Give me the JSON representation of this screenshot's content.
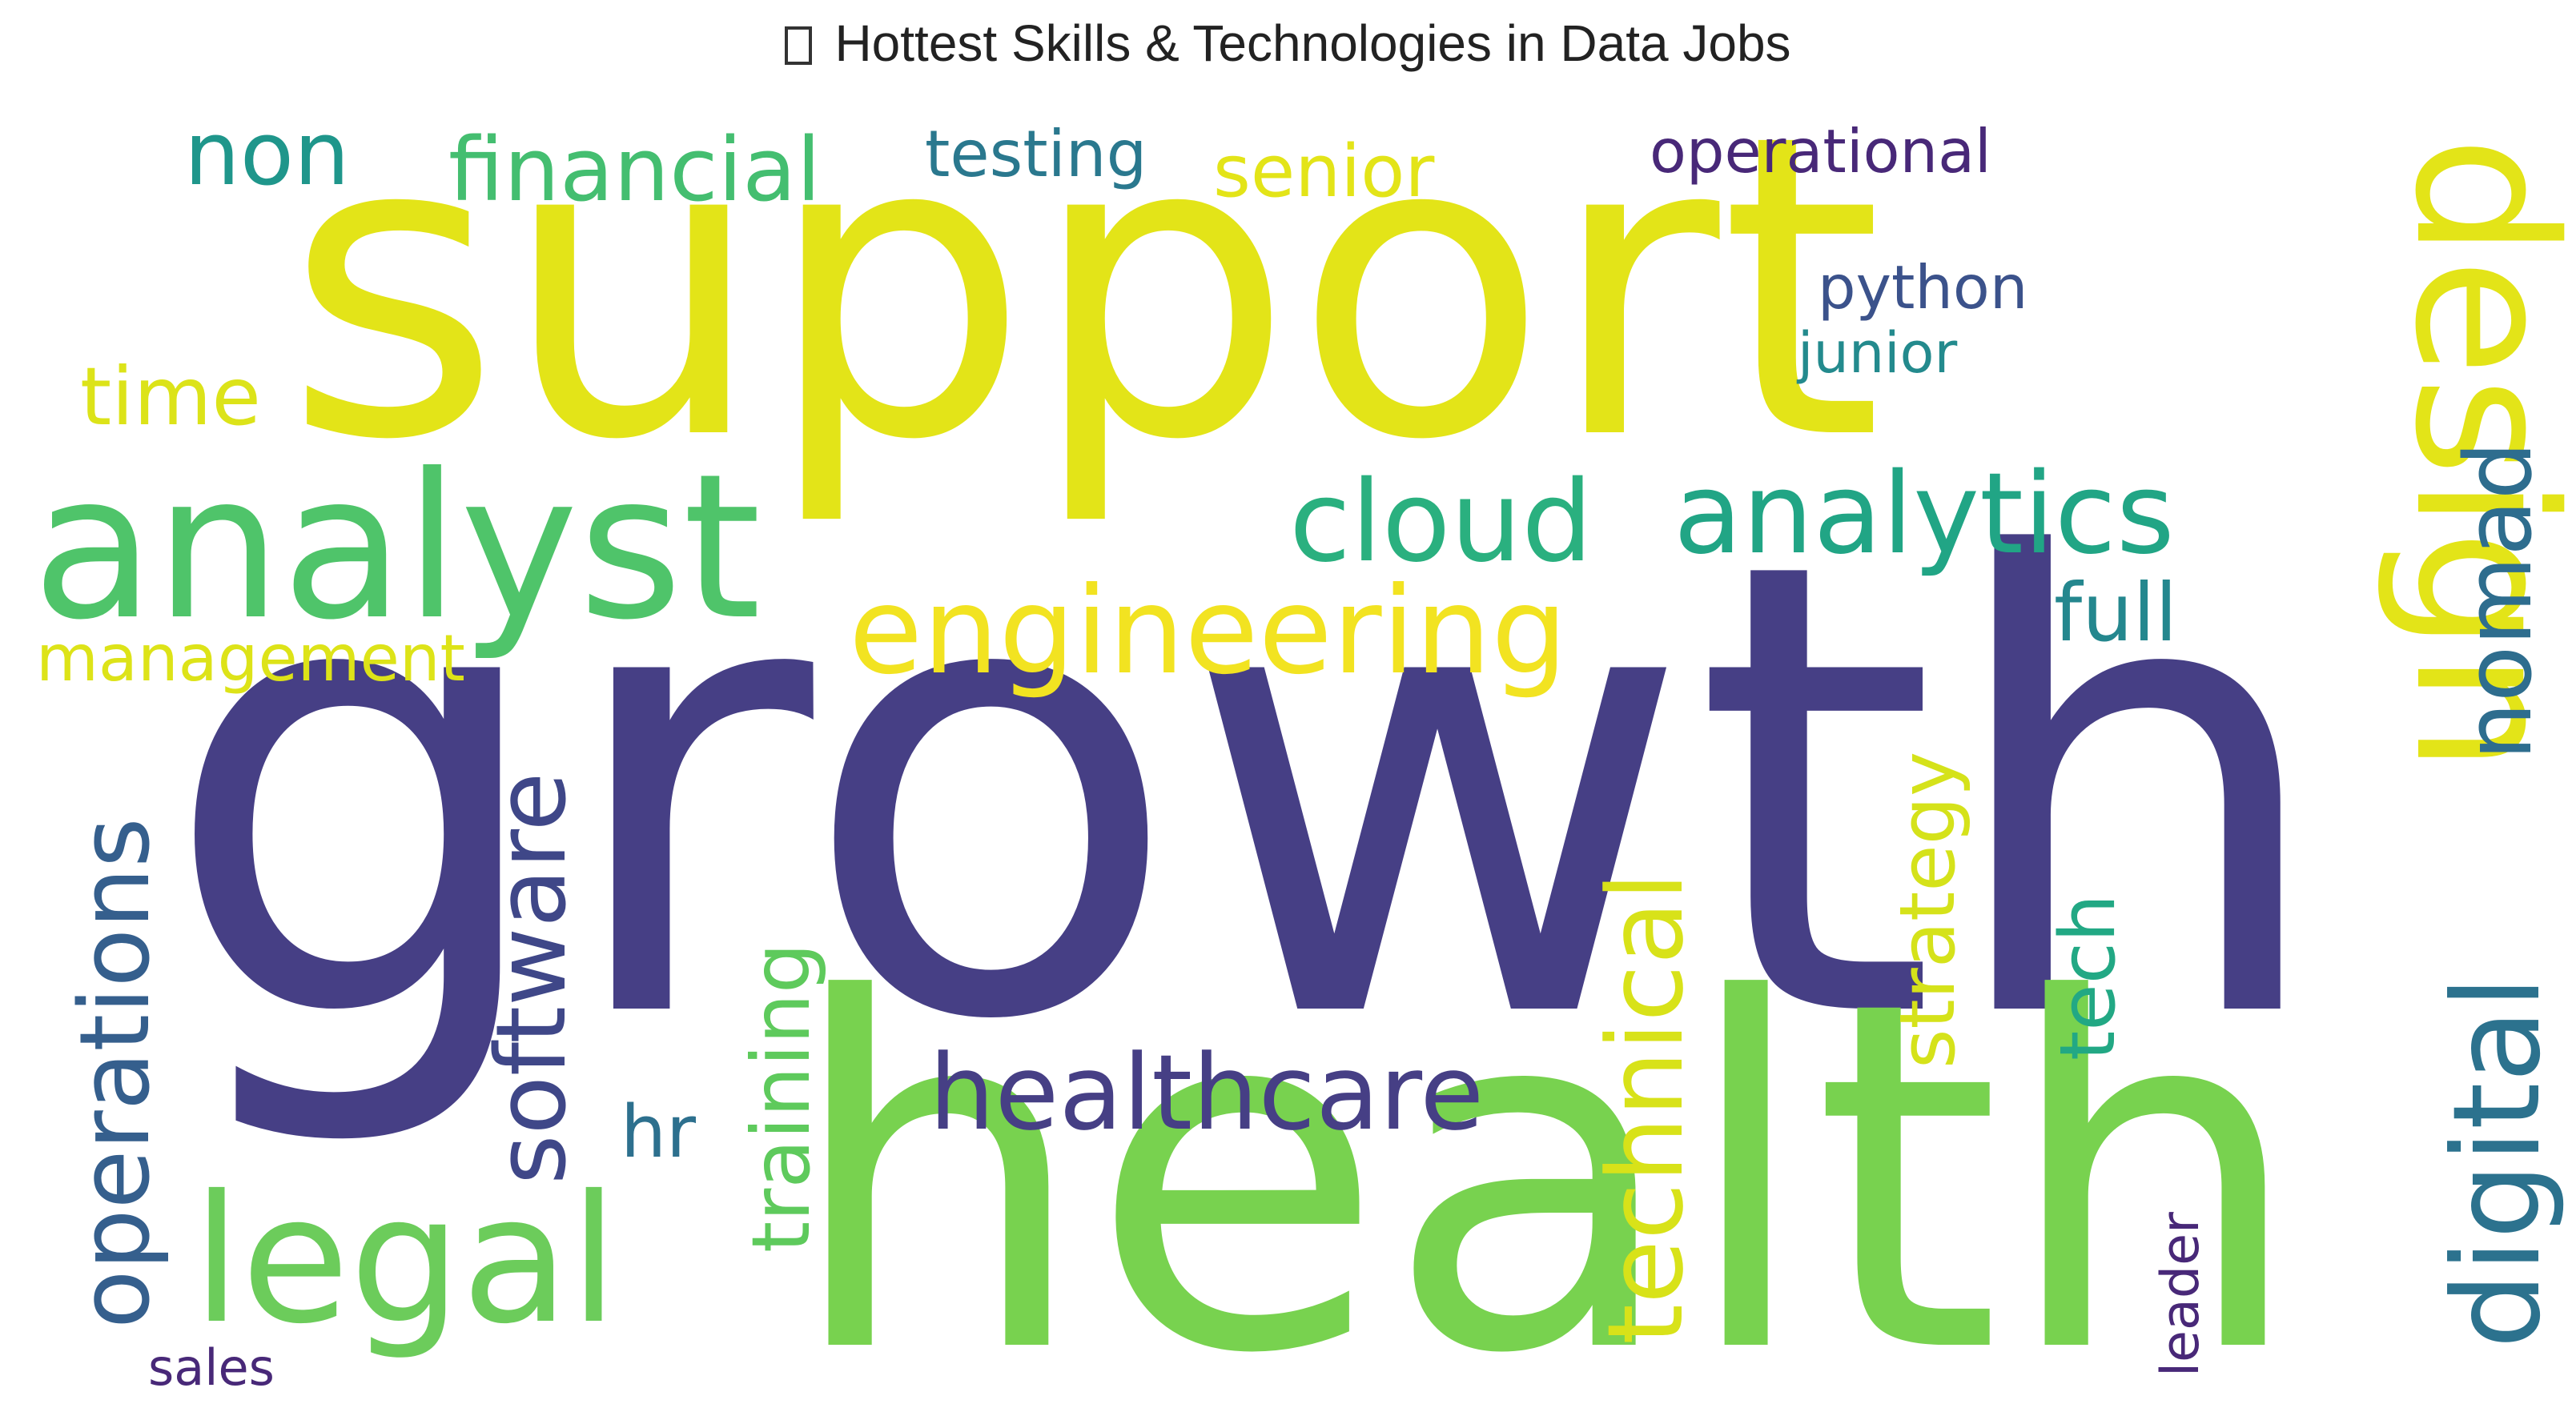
{
  "chart_data": {
    "type": "wordcloud",
    "title": "Hottest Skills & Technologies in Data Jobs",
    "title_icon": "emoji-glyph-placeholder",
    "colormap": "viridis",
    "words": [
      {
        "text": "growth",
        "weight": 100,
        "color": "#463F85",
        "rotate": 0
      },
      {
        "text": "health",
        "weight": 78,
        "color": "#78D24F",
        "rotate": 0
      },
      {
        "text": "support",
        "weight": 73,
        "color": "#E3E418",
        "rotate": 0
      },
      {
        "text": "analyst",
        "weight": 36,
        "color": "#4FC46A",
        "rotate": 0
      },
      {
        "text": "design",
        "weight": 30,
        "color": "#E3E418",
        "rotate": 90
      },
      {
        "text": "legal",
        "weight": 30,
        "color": "#6CCC5B",
        "rotate": 0
      },
      {
        "text": "engineering",
        "weight": 20,
        "color": "#F2E321",
        "rotate": 0
      },
      {
        "text": "digital",
        "weight": 19,
        "color": "#2C728E",
        "rotate": -90
      },
      {
        "text": "analytics",
        "weight": 16,
        "color": "#21A585",
        "rotate": 0
      },
      {
        "text": "cloud",
        "weight": 16,
        "color": "#2AB07F",
        "rotate": 0
      },
      {
        "text": "healthcare",
        "weight": 16,
        "color": "#463F85",
        "rotate": 0
      },
      {
        "text": "technical",
        "weight": 16,
        "color": "#D8E219",
        "rotate": -90
      },
      {
        "text": "operations",
        "weight": 15,
        "color": "#355F8D",
        "rotate": -90
      },
      {
        "text": "software",
        "weight": 15,
        "color": "#3F4788",
        "rotate": -90
      },
      {
        "text": "nomad",
        "weight": 14,
        "color": "#2E6D8E",
        "rotate": -90
      },
      {
        "text": "financial",
        "weight": 13,
        "color": "#44BE70",
        "rotate": 0
      },
      {
        "text": "training",
        "weight": 12,
        "color": "#5ECA5C",
        "rotate": -90
      },
      {
        "text": "non",
        "weight": 12,
        "color": "#1F968B",
        "rotate": 0
      },
      {
        "text": "full",
        "weight": 12,
        "color": "#24878E",
        "rotate": 0
      },
      {
        "text": "strategy",
        "weight": 11,
        "color": "#D5E21A",
        "rotate": -90
      },
      {
        "text": "tech",
        "weight": 11,
        "color": "#22A884",
        "rotate": -90
      },
      {
        "text": "time",
        "weight": 11,
        "color": "#DCE319",
        "rotate": 0
      },
      {
        "text": "senior",
        "weight": 10,
        "color": "#E3E418",
        "rotate": 0
      },
      {
        "text": "hr",
        "weight": 10,
        "color": "#2D708E",
        "rotate": 0
      },
      {
        "text": "management",
        "weight": 9,
        "color": "#DDE318",
        "rotate": 0
      },
      {
        "text": "testing",
        "weight": 9,
        "color": "#2A788E",
        "rotate": 0
      },
      {
        "text": "python",
        "weight": 9,
        "color": "#3B528B",
        "rotate": 0
      },
      {
        "text": "operational",
        "weight": 9,
        "color": "#482878",
        "rotate": 0
      },
      {
        "text": "junior",
        "weight": 8,
        "color": "#238A8D",
        "rotate": 0
      },
      {
        "text": "leader",
        "weight": 7,
        "color": "#482878",
        "rotate": -90
      },
      {
        "text": "sales",
        "weight": 7,
        "color": "#482878",
        "rotate": 0
      }
    ]
  }
}
